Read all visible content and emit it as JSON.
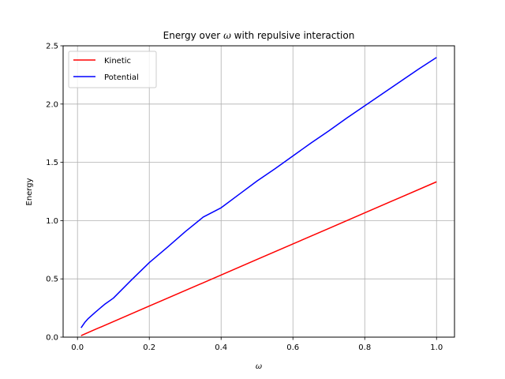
{
  "chart_data": {
    "type": "line",
    "title_prefix": "Energy over ",
    "title_symbol": "ω",
    "title_suffix": " with repulsive interaction",
    "xlabel": "ω",
    "ylabel": "Energy",
    "xlim": [
      -0.04,
      1.05
    ],
    "ylim": [
      0,
      2.5
    ],
    "xticks": [
      0.0,
      0.2,
      0.4,
      0.6,
      0.8,
      1.0
    ],
    "xtick_labels": [
      "0.0",
      "0.2",
      "0.4",
      "0.6",
      "0.8",
      "1.0"
    ],
    "yticks": [
      0.0,
      0.5,
      1.0,
      1.5,
      2.0,
      2.5
    ],
    "ytick_labels": [
      "0.0",
      "0.5",
      "1.0",
      "1.5",
      "2.0",
      "2.5"
    ],
    "grid": true,
    "legend_position": "top-left",
    "series": [
      {
        "name": "Kinetic",
        "color": "#ff0000",
        "x": [
          0.01,
          0.05,
          0.1,
          0.2,
          0.3,
          0.4,
          0.5,
          0.6,
          0.7,
          0.8,
          0.9,
          1.0
        ],
        "y": [
          0.013,
          0.067,
          0.133,
          0.267,
          0.4,
          0.533,
          0.667,
          0.8,
          0.933,
          1.067,
          1.2,
          1.333
        ]
      },
      {
        "name": "Potential",
        "color": "#0000ff",
        "x": [
          0.01,
          0.02,
          0.03,
          0.05,
          0.075,
          0.1,
          0.15,
          0.2,
          0.25,
          0.3,
          0.35,
          0.4,
          0.45,
          0.5,
          0.55,
          0.6,
          0.65,
          0.7,
          0.75,
          0.8,
          0.85,
          0.9,
          0.95,
          1.0
        ],
        "y": [
          0.08,
          0.125,
          0.16,
          0.215,
          0.28,
          0.335,
          0.49,
          0.64,
          0.77,
          0.905,
          1.03,
          1.11,
          1.225,
          1.34,
          1.445,
          1.555,
          1.665,
          1.77,
          1.88,
          1.985,
          2.09,
          2.195,
          2.3,
          2.4
        ]
      }
    ]
  }
}
